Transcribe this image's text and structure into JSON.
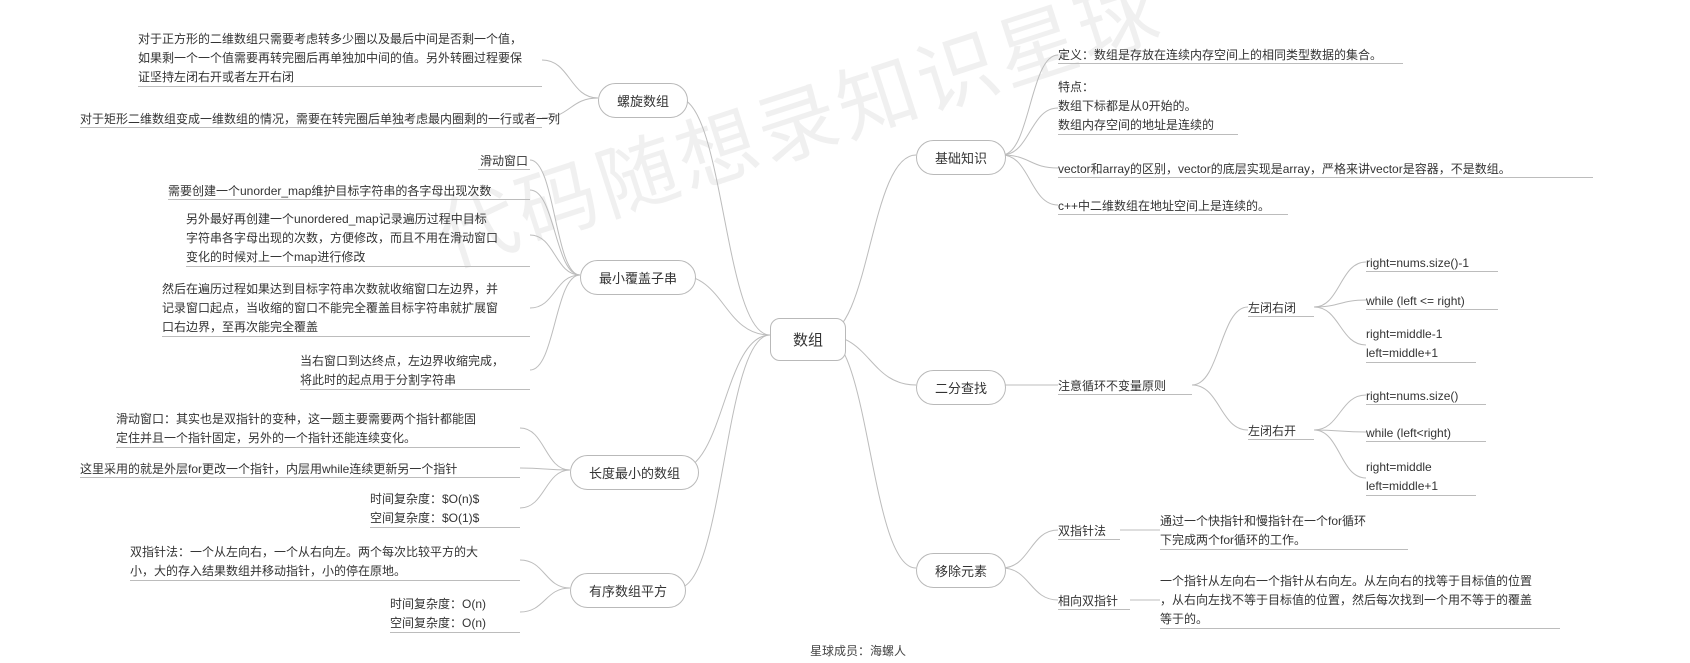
{
  "style": {
    "node_border": "#b9b9b9",
    "node_radius": 20,
    "line_color": "#bcbcbc",
    "bg": "#ffffff",
    "font_size_root": 15,
    "font_size_node": 13,
    "font_size_leaf": 12,
    "watermark_color": "rgba(0,0,0,0.06)",
    "watermark_angle": -18
  },
  "root": {
    "label": "数组"
  },
  "branches": {
    "basics": {
      "label": "基础知识",
      "leaves": [
        "定义：数组是存放在连续内存空间上的相同类型数据的集合。",
        "特点：\n数组下标都是从0开始的。\n数组内存空间的地址是连续的",
        "vector和array的区别，vector的底层实现是array，严格来讲vector是容器，不是数组。",
        "c++中二维数组在地址空间上是连续的。"
      ]
    },
    "binary_search": {
      "label": "二分查找",
      "principle": "注意循环不变量原则",
      "closed_closed": {
        "label": "左闭右闭",
        "leaves": [
          "right=nums.size()-1",
          "while (left <= right)",
          "right=middle-1\nleft=middle+1"
        ]
      },
      "closed_open": {
        "label": "左闭右开",
        "leaves": [
          "right=nums.size()",
          "while (left<right)",
          "right=middle\nleft=middle+1"
        ]
      }
    },
    "remove_element": {
      "label": "移除元素",
      "two_pointer": {
        "label": "双指针法",
        "leaf": "通过一个快指针和慢指针在一个for循环\n下完成两个for循环的工作。"
      },
      "opposite_pointer": {
        "label": "相向双指针",
        "leaf": "一个指针从左向右一个指针从右向左。从左向右的找等于目标值的位置\n，从右向左找不等于目标值的位置，然后每次找到一个用不等于的覆盖\n等于的。"
      }
    },
    "spiral": {
      "label": "螺旋数组",
      "leaves": [
        "对于正方形的二维数组只需要考虑转多少圈以及最后中间是否剩一个值，\n如果剩一个一个值需要再转完圈后再单独加中间的值。另外转圈过程要保\n证坚持左闭右开或者左开右闭",
        "对于矩形二维数组变成一维数组的情况，需要在转完圈后单独考虑最内圈剩的一行或者一列"
      ]
    },
    "min_substring": {
      "label": "最小覆盖子串",
      "leaves": [
        "滑动窗口",
        "需要创建一个unorder_map维护目标字符串的各字母出现次数",
        "另外最好再创建一个unordered_map记录遍历过程中目标\n字符串各字母出现的次数，方便修改，而且不用在滑动窗口\n变化的时候对上一个map进行修改",
        "然后在遍历过程如果达到目标字符串次数就收缩窗口左边界，并\n记录窗口起点，当收缩的窗口不能完全覆盖目标字符串就扩展窗\n口右边界，至再次能完全覆盖",
        "当右窗口到达终点，左边界收缩完成，\n将此时的起点用于分割字符串"
      ]
    },
    "min_length": {
      "label": "长度最小的数组",
      "leaves": [
        "滑动窗口：其实也是双指针的变种，这一题主要需要两个指针都能固\n定住并且一个指针固定，另外的一个指针还能连续变化。",
        "这里采用的就是外层for更改一个指针，内层用while连续更新另一个指针",
        "时间复杂度：$O(n)$\n空间复杂度：$O(1)$"
      ]
    },
    "sorted_squares": {
      "label": "有序数组平方",
      "leaves": [
        "双指针法：一个从左向右，一个从右向左。两个每次比较平方的大\n小，大的存入结果数组并移动指针，小的停在原地。",
        "时间复杂度：O(n)\n空间复杂度：O(n)"
      ]
    }
  },
  "watermark": "代码随想录知识星球",
  "footer": "星球成员：海螺人"
}
